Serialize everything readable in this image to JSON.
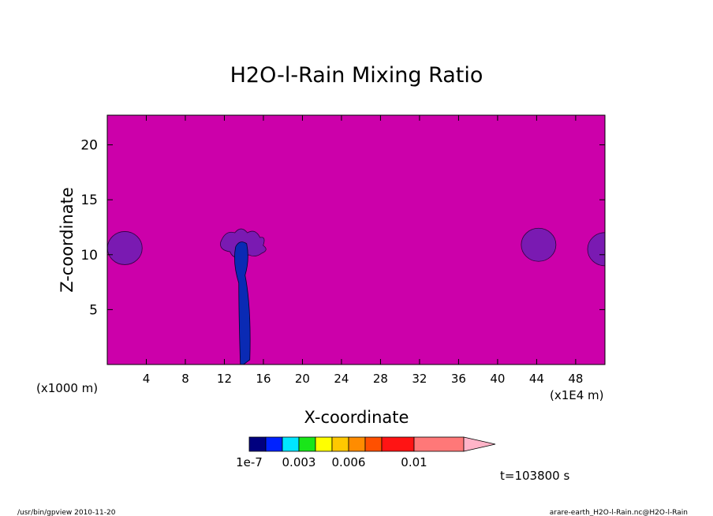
{
  "chart_data": {
    "type": "heatmap",
    "title": "H2O-l-Rain Mixing Ratio",
    "xlabel": "X-coordinate",
    "ylabel": "Z-coordinate",
    "x_unit": "(x1E4 m)",
    "y_unit": "(x1000 m)",
    "x_ticks": [
      4,
      8,
      12,
      16,
      20,
      24,
      28,
      32,
      36,
      40,
      44,
      48
    ],
    "y_ticks": [
      5,
      10,
      15,
      20
    ],
    "xlim": [
      0,
      51
    ],
    "ylim": [
      0,
      22.7
    ],
    "background_color": "#cc00aa",
    "features": [
      {
        "kind": "blob",
        "center_x": 1.8,
        "center_z": 10.6,
        "color": "#7a1ab2"
      },
      {
        "kind": "column",
        "center_x": 13.8,
        "top_z": 11.0,
        "color": "#0a2ab4"
      },
      {
        "kind": "anvil",
        "center_x": 14.2,
        "center_z": 10.7,
        "color": "#7a1ab2"
      },
      {
        "kind": "blob",
        "center_x": 44.2,
        "center_z": 10.9,
        "color": "#7a1ab2"
      },
      {
        "kind": "blob",
        "center_x": 51.0,
        "center_z": 10.5,
        "color": "#7a1ab2"
      }
    ],
    "colorbar": {
      "colors": [
        "#00007f",
        "#0022ff",
        "#00e6ff",
        "#19e619",
        "#ffff00",
        "#ffc800",
        "#ff8c00",
        "#ff5000",
        "#ff1414",
        "#ff7878"
      ],
      "extend_color": "#ffb4c8",
      "labels": [
        "1e-7",
        "0.003",
        "0.006",
        "0.01"
      ]
    },
    "time_label": "t=103800 s"
  },
  "footer": {
    "left": "/usr/bin/gpview  2010-11-20",
    "right": "arare-earth_H2O-l-Rain.nc@H2O-l-Rain"
  }
}
